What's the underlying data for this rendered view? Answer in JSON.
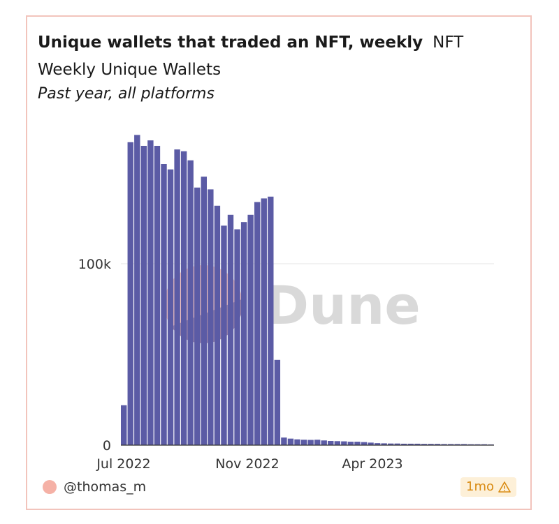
{
  "title": "Unique wallets that traded an NFT, weekly",
  "query_name": "NFT Weekly Unique Wallets",
  "subtitle": "Past year, all platforms",
  "watermark": "Dune",
  "footer": {
    "author": "@thomas_m",
    "age_badge": "1mo",
    "badge_icon": "warning-icon"
  },
  "colors": {
    "bar": "#5b5ba5",
    "border": "#f2c4bc",
    "avatar": "#f5b1a6",
    "badge_bg": "#fdf0d8",
    "badge_text": "#d98b12"
  },
  "chart_data": {
    "type": "bar",
    "title": "Unique wallets that traded an NFT, weekly",
    "subtitle": "Past year, all platforms",
    "xlabel": "",
    "ylabel": "",
    "x_tick_labels": [
      "Jul 2022",
      "Nov 2022",
      "Apr 2023"
    ],
    "y_ticks": [
      {
        "value": 0,
        "label": "0"
      },
      {
        "value": 100000,
        "label": "100k"
      }
    ],
    "ylim": [
      0,
      175000
    ],
    "grid": "horizontal",
    "values": [
      22000,
      167000,
      171000,
      165000,
      168000,
      165000,
      155000,
      152000,
      163000,
      162000,
      157000,
      142000,
      148000,
      141000,
      132000,
      121000,
      127000,
      119000,
      123000,
      127000,
      134000,
      136000,
      137000,
      47000,
      4200,
      3600,
      3200,
      3000,
      2900,
      3000,
      2600,
      2300,
      2200,
      2100,
      1900,
      1900,
      1700,
      1400,
      1100,
      1000,
      900,
      900,
      800,
      800,
      800,
      700,
      700,
      700,
      600,
      600,
      600,
      600,
      500,
      500,
      500,
      400
    ]
  }
}
